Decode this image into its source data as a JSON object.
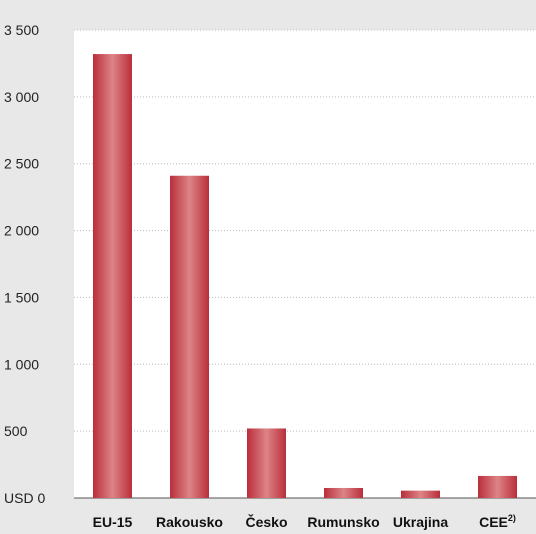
{
  "chart_data": {
    "type": "bar",
    "categories": [
      "EU-15",
      "Rakousko",
      "Česko",
      "Rumunsko",
      "Ukrajina",
      "CEE"
    ],
    "category_superscripts": [
      "",
      "",
      "",
      "",
      "",
      "2)"
    ],
    "values": [
      3320,
      2410,
      520,
      75,
      55,
      165
    ],
    "ylim": [
      0,
      3500
    ],
    "yticks": [
      0,
      500,
      1000,
      1500,
      2000,
      2500,
      3000,
      3500
    ],
    "ytick_labels": [
      "USD 0",
      "500",
      "1 000",
      "1 500",
      "2 000",
      "2 500",
      "3 000",
      "3 500"
    ],
    "grid": true,
    "bar_color": "#b92e3a",
    "bar_highlight": "#dd8487",
    "plot_background": "#ffffff",
    "page_background": "#e8e8e8",
    "grid_color": "#bbbbbb",
    "title": "",
    "xlabel": "",
    "ylabel": ""
  }
}
